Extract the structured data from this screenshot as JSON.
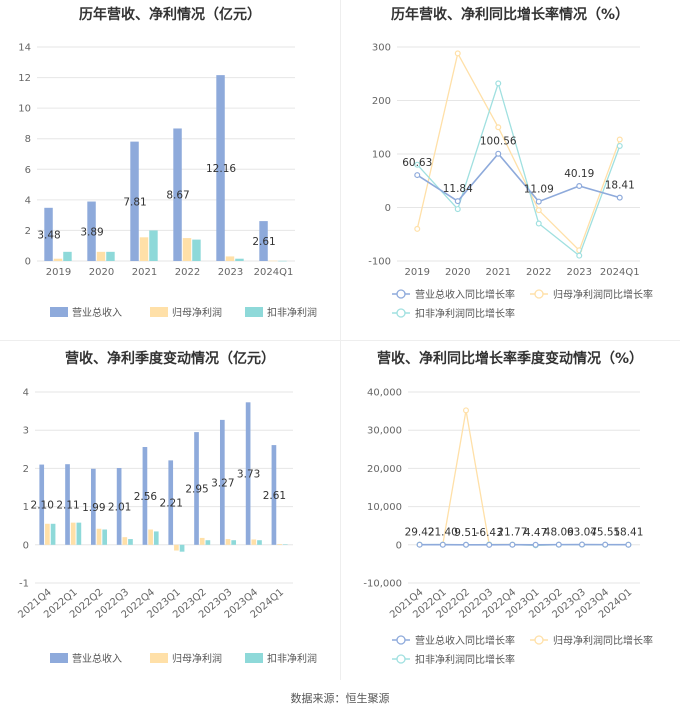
{
  "footer": "数据来源：恒生聚源",
  "colors": {
    "revenue": "#8eaadb",
    "profit": "#ffe0a8",
    "deducted": "#8ed9d9",
    "revenue_line": "#8eaadb",
    "profit_line": "#ffe0a8",
    "deducted_line": "#a0e0e0"
  },
  "chart_data": [
    {
      "type": "bar",
      "title": "历年营收、净利情况（亿元）",
      "categories": [
        "2019",
        "2020",
        "2021",
        "2022",
        "2023",
        "2024Q1"
      ],
      "ylim": [
        0,
        14
      ],
      "yticks": [
        0,
        2,
        4,
        6,
        8,
        10,
        12,
        14
      ],
      "series": [
        {
          "name": "营业总收入",
          "values": [
            3.48,
            3.89,
            7.81,
            8.67,
            12.16,
            2.61
          ],
          "labels": [
            "3.48",
            "3.89",
            "7.81",
            "8.67",
            "12.16",
            "2.61"
          ]
        },
        {
          "name": "归母净利润",
          "values": [
            0.15,
            0.6,
            1.55,
            1.5,
            0.3,
            0.02
          ]
        },
        {
          "name": "扣非净利润",
          "values": [
            0.6,
            0.6,
            2.0,
            1.4,
            0.15,
            0.01
          ]
        }
      ]
    },
    {
      "type": "line",
      "title": "历年营收、净利同比增长率情况（%）",
      "categories": [
        "2019",
        "2020",
        "2021",
        "2022",
        "2023",
        "2024Q1"
      ],
      "ylim": [
        -100,
        300
      ],
      "yticks": [
        -100,
        0,
        100,
        200,
        300
      ],
      "series": [
        {
          "name": "营业总收入同比增长率",
          "values": [
            60.63,
            11.84,
            100.56,
            11.09,
            40.19,
            18.41
          ],
          "labels": [
            "60.63",
            "11.84",
            "100.56",
            "11.09",
            "40.19",
            "18.41"
          ]
        },
        {
          "name": "归母净利润同比增长率",
          "values": [
            -40,
            288,
            150,
            -5,
            -80,
            127
          ]
        },
        {
          "name": "扣非净利润同比增长率",
          "values": [
            80,
            -3,
            232,
            -30,
            -90,
            115
          ]
        }
      ]
    },
    {
      "type": "bar",
      "title": "营收、净利季度变动情况（亿元）",
      "categories": [
        "2021Q4",
        "2022Q1",
        "2022Q2",
        "2022Q3",
        "2022Q4",
        "2023Q1",
        "2023Q2",
        "2023Q3",
        "2023Q4",
        "2024Q1"
      ],
      "ylim": [
        -1,
        4
      ],
      "yticks": [
        -1,
        0,
        1,
        2,
        3,
        4
      ],
      "series": [
        {
          "name": "营业总收入",
          "values": [
            2.1,
            2.11,
            1.99,
            2.01,
            2.56,
            2.21,
            2.95,
            3.27,
            3.73,
            2.61
          ],
          "labels": [
            "2.10",
            "2.11",
            "1.99",
            "2.01",
            "2.56",
            "2.21",
            "2.95",
            "3.27",
            "3.73",
            "2.61"
          ]
        },
        {
          "name": "归母净利润",
          "values": [
            0.55,
            0.58,
            0.42,
            0.2,
            0.4,
            -0.15,
            0.18,
            0.15,
            0.14,
            0.02
          ]
        },
        {
          "name": "扣非净利润",
          "values": [
            0.55,
            0.58,
            0.4,
            0.15,
            0.35,
            -0.18,
            0.12,
            0.12,
            0.12,
            0.01
          ]
        }
      ]
    },
    {
      "type": "line",
      "title": "营收、净利同比增长率季度变动情况（%）",
      "categories": [
        "2021Q4",
        "2022Q1",
        "2022Q2",
        "2022Q3",
        "2022Q4",
        "2023Q1",
        "2023Q2",
        "2023Q3",
        "2023Q4",
        "2024Q1"
      ],
      "ylim": [
        -10000,
        40000
      ],
      "yticks": [
        -10000,
        0,
        10000,
        20000,
        30000,
        40000
      ],
      "ytick_labels": [
        "-10,000",
        "0",
        "10,000",
        "20,000",
        "30,000",
        "40,000"
      ],
      "series": [
        {
          "name": "营业总收入同比增长率",
          "values": [
            29.42,
            21.4,
            9.51,
            -6.43,
            21.77,
            4.47,
            48.09,
            63.07,
            45.55,
            18.41
          ],
          "labels": [
            "29.42",
            "21.40",
            "9.51",
            "-6.43",
            "21.77",
            "4.47",
            "48.09",
            "63.07",
            "45.55",
            "18.41"
          ]
        },
        {
          "name": "归母净利润同比增长率",
          "values": [
            50,
            80,
            35200,
            100,
            60,
            -120,
            30,
            50,
            20,
            30
          ]
        },
        {
          "name": "扣非净利润同比增长率",
          "values": [
            40,
            60,
            20,
            80,
            50,
            -130,
            20,
            40,
            10,
            20
          ]
        }
      ]
    }
  ]
}
